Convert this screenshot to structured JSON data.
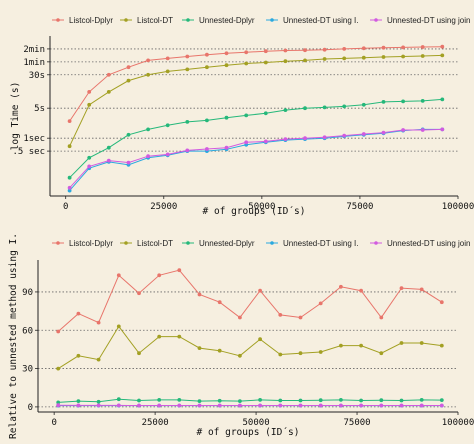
{
  "colors": {
    "background": "#F6EFE0",
    "axis": "#222222",
    "gridline": "#666666"
  },
  "chart_data": [
    {
      "type": "line",
      "xlabel": "# of groups (ID´s)",
      "ylabel": "log Time (s)",
      "x_ticks": [
        {
          "value": 0,
          "label": "0"
        },
        {
          "value": 25000,
          "label": "25000"
        },
        {
          "value": 50000,
          "label": "50000"
        },
        {
          "value": 75000,
          "label": "75000"
        },
        {
          "value": 100000,
          "label": "100000"
        }
      ],
      "y_ticks": [
        {
          "value": 120,
          "label": "2min"
        },
        {
          "value": 60,
          "label": "1min"
        },
        {
          "value": 30,
          "label": "30s"
        },
        {
          "value": 5,
          "label": "5s"
        },
        {
          "value": 1,
          "label": "1sec"
        },
        {
          "value": 0.5,
          "label": ".5 sec"
        }
      ],
      "y_scale": "log",
      "xlim": [
        -4000,
        100000
      ],
      "ylim": [
        0.045,
        240
      ],
      "grid": "dotted horizontal at y ticks",
      "legend_position": "top",
      "x": [
        1000,
        6000,
        11000,
        16000,
        21000,
        26000,
        31000,
        36000,
        41000,
        46000,
        51000,
        56000,
        61000,
        66000,
        71000,
        76000,
        81000,
        86000,
        91000,
        96000
      ],
      "series": [
        {
          "name": "Listcol-Dplyr",
          "color": "#E8756B",
          "values": [
            2.5,
            12,
            30,
            45,
            65,
            72,
            80,
            88,
            95,
            100,
            106,
            110,
            112,
            115,
            120,
            124,
            128,
            130,
            133,
            135
          ]
        },
        {
          "name": "Listcol-DT",
          "color": "#A3A023",
          "values": [
            0.65,
            6,
            12,
            22,
            30,
            36,
            40,
            45,
            50,
            55,
            58,
            62,
            65,
            70,
            72,
            75,
            78,
            80,
            82,
            85
          ]
        },
        {
          "name": "Unnested-Dplyr",
          "color": "#25B87A",
          "values": [
            0.12,
            0.35,
            0.6,
            1.2,
            1.6,
            2.0,
            2.4,
            2.6,
            3.0,
            3.4,
            3.8,
            4.5,
            5.0,
            5.2,
            5.5,
            6.0,
            7.0,
            7.2,
            7.4,
            8.0
          ]
        },
        {
          "name": "Unnested-DT using I.",
          "color": "#2AA9DF",
          "values": [
            0.06,
            0.2,
            0.28,
            0.24,
            0.35,
            0.4,
            0.5,
            0.5,
            0.55,
            0.7,
            0.8,
            0.9,
            0.95,
            1.0,
            1.1,
            1.2,
            1.3,
            1.5,
            1.6,
            1.6
          ]
        },
        {
          "name": "Unnested-DT using join",
          "color": "#D25BE0",
          "values": [
            0.07,
            0.22,
            0.3,
            0.27,
            0.38,
            0.42,
            0.52,
            0.56,
            0.6,
            0.8,
            0.84,
            0.95,
            1.0,
            1.05,
            1.15,
            1.25,
            1.35,
            1.55,
            1.55,
            1.6
          ]
        }
      ]
    },
    {
      "type": "line",
      "xlabel": "# of groups (ID´s)",
      "ylabel": "Relative to unnested method using I.",
      "x_ticks": [
        {
          "value": 0,
          "label": "0"
        },
        {
          "value": 25000,
          "label": "25000"
        },
        {
          "value": 50000,
          "label": "50000"
        },
        {
          "value": 75000,
          "label": "75000"
        },
        {
          "value": 100000,
          "label": "100000"
        }
      ],
      "y_ticks": [
        {
          "value": 0,
          "label": "0"
        },
        {
          "value": 30,
          "label": "30"
        },
        {
          "value": 60,
          "label": "60"
        },
        {
          "value": 90,
          "label": "90"
        }
      ],
      "y_scale": "linear",
      "xlim": [
        -4000,
        100000
      ],
      "ylim": [
        -4,
        115
      ],
      "grid": "dotted horizontal at y ticks",
      "legend_position": "top",
      "x": [
        1000,
        6000,
        11000,
        16000,
        21000,
        26000,
        31000,
        36000,
        41000,
        46000,
        51000,
        56000,
        61000,
        66000,
        71000,
        76000,
        81000,
        86000,
        91000,
        96000
      ],
      "series": [
        {
          "name": "Listcol-Dplyr",
          "color": "#E8756B",
          "values": [
            59,
            73,
            66,
            103,
            89,
            103,
            107,
            88,
            82,
            70,
            91,
            72,
            70,
            81,
            94,
            91,
            70,
            93,
            92,
            82
          ]
        },
        {
          "name": "Listcol-DT",
          "color": "#A3A023",
          "values": [
            30,
            40,
            37,
            63,
            42,
            55,
            55,
            46,
            44,
            40,
            53,
            41,
            42,
            43,
            48,
            48,
            42,
            50,
            50,
            48
          ]
        },
        {
          "name": "Unnested-Dplyr",
          "color": "#25B87A",
          "values": [
            3.5,
            4.5,
            4,
            6,
            5,
            5.5,
            5.5,
            4.5,
            4.8,
            4.5,
            5.5,
            5,
            5,
            5.2,
            5.5,
            5,
            5.2,
            5,
            5.5,
            5.3
          ]
        },
        {
          "name": "Unnested-DT using I.",
          "color": "#2AA9DF",
          "values": [
            1,
            1,
            1,
            1,
            1,
            1,
            1,
            1,
            1,
            1,
            1,
            1,
            1,
            1,
            1,
            1,
            1,
            1,
            1,
            1
          ]
        },
        {
          "name": "Unnested-DT using join",
          "color": "#D25BE0",
          "values": [
            1.3,
            1.2,
            1.2,
            1.2,
            1.1,
            1.1,
            1.1,
            1.1,
            1.1,
            1.1,
            1.1,
            1.1,
            1.1,
            1.1,
            1.1,
            1.1,
            1.1,
            1.1,
            1.1,
            1.1
          ]
        }
      ]
    }
  ]
}
